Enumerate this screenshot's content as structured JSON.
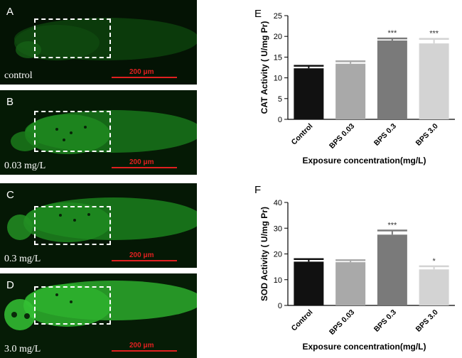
{
  "panels": [
    {
      "letter": "A",
      "condition": "control",
      "scale": "200 μm"
    },
    {
      "letter": "B",
      "condition": "0.03 mg/L",
      "scale": "200 μm"
    },
    {
      "letter": "C",
      "condition": "0.3 mg/L",
      "scale": "200 μm"
    },
    {
      "letter": "D",
      "condition": "3.0 mg/L",
      "scale": "200 μm"
    }
  ],
  "colors": {
    "bar1": "#111111",
    "bar2": "#a9a9a9",
    "bar3": "#7a7a7a",
    "bar4": "#d3d3d3",
    "fluor": "#2bc62b"
  },
  "chart_data": [
    {
      "type": "bar",
      "panel": "E",
      "categories": [
        "Control",
        "BPS 0.03",
        "BPS 0.3",
        "BPS 3.0"
      ],
      "values": [
        12.3,
        13.4,
        19.0,
        18.3
      ],
      "errors": [
        0.6,
        0.6,
        0.5,
        1.1
      ],
      "significance": [
        "",
        "",
        "***",
        "***"
      ],
      "xlabel": "Exposure concentration(mg/L)",
      "ylabel": "CAT Activity ( U/mg Pr)",
      "ylim": [
        0,
        25
      ],
      "yticks": [
        0,
        5,
        10,
        15,
        20,
        25
      ]
    },
    {
      "type": "bar",
      "panel": "F",
      "categories": [
        "Control",
        "BPS 0.03",
        "BPS 0.3",
        "BPS 3.0"
      ],
      "values": [
        17.0,
        16.8,
        27.5,
        14.0
      ],
      "errors": [
        1.0,
        0.8,
        1.6,
        1.2
      ],
      "significance": [
        "",
        "",
        "***",
        "*"
      ],
      "xlabel": "Exposure concentration(mg/L)",
      "ylabel": "SOD Activity ( U/mg Pr)",
      "ylim": [
        0,
        40
      ],
      "yticks": [
        0,
        10,
        20,
        30,
        40
      ]
    }
  ]
}
